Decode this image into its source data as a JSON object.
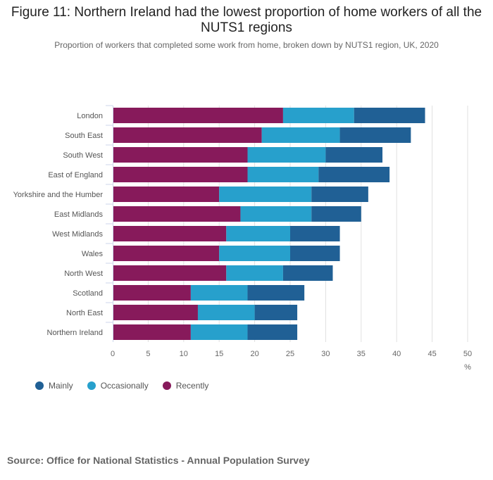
{
  "title": "Figure 11: Northern Ireland had the lowest proportion of home workers of all the NUTS1 regions",
  "subtitle": "Proportion of workers that completed some work from home, broken down by NUTS1 region, UK, 2020",
  "source": "Source: Office for National Statistics - Annual Population Survey",
  "chart_data": {
    "type": "bar",
    "orientation": "horizontal",
    "stacked": true,
    "categories": [
      "London",
      "South East",
      "South West",
      "East of England",
      "Yorkshire and the Humber",
      "East Midlands",
      "West Midlands",
      "Wales",
      "North West",
      "Scotland",
      "North East",
      "Northern Ireland"
    ],
    "series": [
      {
        "name": "Recently",
        "color": "#871A5B",
        "values": [
          24,
          21,
          19,
          19,
          15,
          18,
          16,
          15,
          16,
          11,
          12,
          11
        ]
      },
      {
        "name": "Occasionally",
        "color": "#27A0CC",
        "values": [
          10,
          11,
          11,
          10,
          13,
          10,
          9,
          10,
          8,
          8,
          8,
          8
        ]
      },
      {
        "name": "Mainly",
        "color": "#206095",
        "values": [
          10,
          10,
          8,
          10,
          8,
          7,
          7,
          7,
          7,
          8,
          6,
          7
        ]
      }
    ],
    "legend_order": [
      "Mainly",
      "Occasionally",
      "Recently"
    ],
    "xlim": [
      0,
      50
    ],
    "xticks": [
      0,
      5,
      10,
      15,
      20,
      25,
      30,
      35,
      40,
      45,
      50
    ],
    "xlabel": "%",
    "grid": true,
    "legend": "bottom-left"
  }
}
